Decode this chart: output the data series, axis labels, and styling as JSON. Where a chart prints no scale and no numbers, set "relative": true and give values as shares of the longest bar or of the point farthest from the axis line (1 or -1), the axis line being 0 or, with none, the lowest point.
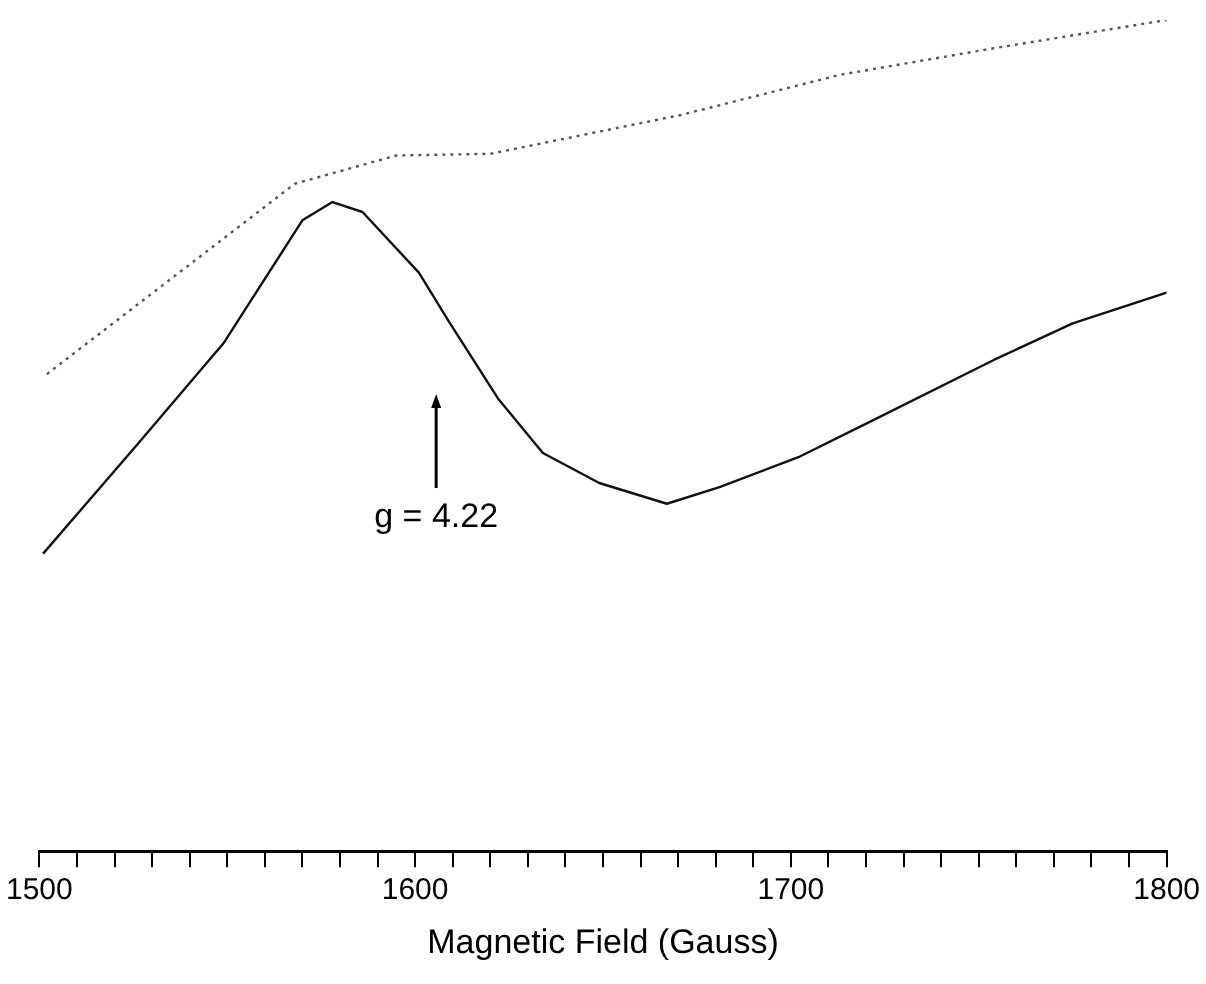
{
  "chart_data": {
    "type": "line",
    "relative": true,
    "xlabel": "Magnetic Field (Gauss)",
    "xlim": [
      1500,
      1800
    ],
    "xticks": [
      1500,
      {
        "value": 1510,
        "label": null
      },
      {
        "value": 1520,
        "label": null
      },
      {
        "value": 1530,
        "label": null
      },
      {
        "value": 1540,
        "label": null
      },
      {
        "value": 1550,
        "label": null
      },
      {
        "value": 1560,
        "label": null
      },
      {
        "value": 1570,
        "label": null
      },
      {
        "value": 1580,
        "label": null
      },
      {
        "value": 1590,
        "label": null
      },
      1600,
      {
        "value": 1610,
        "label": null
      },
      {
        "value": 1620,
        "label": null
      },
      {
        "value": 1630,
        "label": null
      },
      {
        "value": 1640,
        "label": null
      },
      {
        "value": 1650,
        "label": null
      },
      {
        "value": 1660,
        "label": null
      },
      {
        "value": 1670,
        "label": null
      },
      {
        "value": 1680,
        "label": null
      },
      {
        "value": 1690,
        "label": null
      },
      1700,
      {
        "value": 1710,
        "label": null
      },
      {
        "value": 1720,
        "label": null
      },
      {
        "value": 1730,
        "label": null
      },
      {
        "value": 1740,
        "label": null
      },
      {
        "value": 1750,
        "label": null
      },
      {
        "value": 1760,
        "label": null
      },
      {
        "value": 1770,
        "label": null
      },
      {
        "value": 1780,
        "label": null
      },
      {
        "value": 1790,
        "label": null
      },
      1800
    ],
    "grid": false,
    "legend": false,
    "tick_labels": "x",
    "marker": "none",
    "series": [
      {
        "color": "#555555",
        "line_style": "dotted",
        "x": [
          1502,
          1568,
          1595,
          1620,
          1671,
          1713,
          1754,
          1800
        ],
        "values": [
          0.574,
          0.803,
          0.837,
          0.839,
          0.886,
          0.934,
          0.966,
          1
        ]
      },
      {
        "color": "#111111",
        "line_style": "solid",
        "x": [
          1501,
          1526,
          1549,
          1570,
          1578,
          1586,
          1601,
          1609,
          1622,
          1634,
          1649,
          1667,
          1681,
          1702,
          1723,
          1754,
          1775,
          1800
        ],
        "values": [
          0.358,
          0.489,
          0.611,
          0.759,
          0.781,
          0.769,
          0.696,
          0.637,
          0.545,
          0.479,
          0.443,
          0.418,
          0.438,
          0.474,
          0.521,
          0.591,
          0.635,
          0.672
        ]
      }
    ],
    "annotations": [
      "g = 4.22"
    ]
  }
}
